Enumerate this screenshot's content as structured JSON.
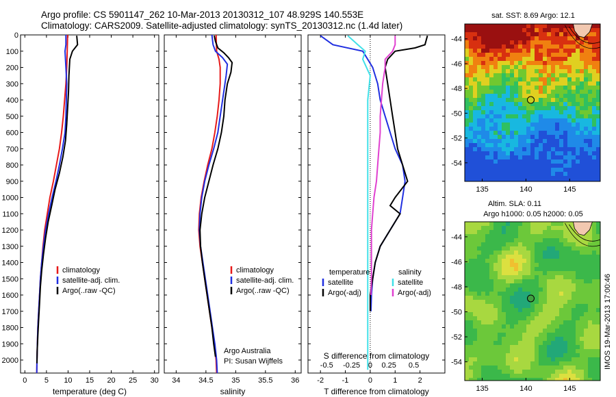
{
  "header": {
    "title_line1": "Argo profile: CS 5901147_262 10-Mar-2013 20130312_107 48.929S 140.553E",
    "title_line2": "Climatology: CARS2009. Satellite-adjusted climatology: synTS_20130312.nc (1.4d later)"
  },
  "colors": {
    "climatology": "#e61919",
    "satellite_adj": "#1f2ee0",
    "argo": "#000000",
    "sal_satellite": "#40e0e8",
    "sal_argo": "#e040d0"
  },
  "chart_data": [
    {
      "type": "line",
      "name": "temperature-profile",
      "xlabel": "temperature (deg C)",
      "ylabel": "",
      "xlim": [
        -1,
        31
      ],
      "ylim": [
        2080,
        0
      ],
      "xticks": [
        0,
        5,
        10,
        15,
        20,
        25,
        30
      ],
      "yticks": [
        0,
        100,
        200,
        300,
        400,
        500,
        600,
        700,
        800,
        900,
        1000,
        1100,
        1200,
        1300,
        1400,
        1500,
        1600,
        1700,
        1800,
        1900,
        2000
      ],
      "legend": [
        "climatology",
        "satellite-adj. clim.",
        "Argo(..raw -QC)"
      ],
      "series": [
        {
          "name": "climatology",
          "color": "#e61919",
          "points": [
            [
              9.9,
              0
            ],
            [
              9.8,
              100
            ],
            [
              9.7,
              200
            ],
            [
              9.5,
              300
            ],
            [
              9.2,
              400
            ],
            [
              8.9,
              500
            ],
            [
              8.5,
              600
            ],
            [
              8.0,
              700
            ],
            [
              7.3,
              800
            ],
            [
              6.6,
              900
            ],
            [
              5.8,
              1000
            ],
            [
              5.2,
              1100
            ],
            [
              4.6,
              1200
            ],
            [
              4.2,
              1300
            ],
            [
              3.9,
              1400
            ],
            [
              3.6,
              1500
            ],
            [
              3.4,
              1600
            ],
            [
              3.2,
              1700
            ],
            [
              3.0,
              1800
            ],
            [
              2.9,
              1900
            ],
            [
              2.8,
              2000
            ],
            [
              2.75,
              2080
            ]
          ]
        },
        {
          "name": "satellite-adj. clim.",
          "color": "#1f2ee0",
          "points": [
            [
              9.5,
              0
            ],
            [
              9.5,
              60
            ],
            [
              9.3,
              100
            ],
            [
              9.5,
              200
            ],
            [
              9.7,
              300
            ],
            [
              9.6,
              400
            ],
            [
              9.5,
              500
            ],
            [
              9.3,
              600
            ],
            [
              8.7,
              700
            ],
            [
              8.0,
              800
            ],
            [
              7.2,
              900
            ],
            [
              6.3,
              1000
            ],
            [
              5.5,
              1100
            ],
            [
              4.8,
              1200
            ],
            [
              4.3,
              1300
            ],
            [
              3.9,
              1400
            ],
            [
              3.6,
              1500
            ],
            [
              3.4,
              1600
            ],
            [
              3.2,
              1700
            ],
            [
              3.0,
              1800
            ],
            [
              2.9,
              1900
            ],
            [
              2.8,
              2000
            ],
            [
              2.75,
              2080
            ]
          ]
        },
        {
          "name": "Argo(..raw -QC)",
          "color": "#000000",
          "points": [
            [
              12.0,
              5
            ],
            [
              12.2,
              60
            ],
            [
              11.0,
              100
            ],
            [
              10.4,
              150
            ],
            [
              10.2,
              250
            ],
            [
              10.1,
              350
            ],
            [
              9.9,
              450
            ],
            [
              9.7,
              550
            ],
            [
              9.4,
              650
            ],
            [
              8.8,
              750
            ],
            [
              8.0,
              850
            ],
            [
              7.0,
              950
            ],
            [
              6.2,
              1050
            ],
            [
              5.4,
              1150
            ],
            [
              4.8,
              1250
            ],
            [
              4.3,
              1350
            ],
            [
              3.9,
              1450
            ],
            [
              3.6,
              1550
            ],
            [
              3.4,
              1650
            ],
            [
              3.2,
              1750
            ],
            [
              3.0,
              1850
            ],
            [
              2.85,
              1950
            ],
            [
              2.8,
              2020
            ]
          ]
        }
      ]
    },
    {
      "type": "line",
      "name": "salinity-profile",
      "xlabel": "salinity",
      "ylabel": "",
      "xlim": [
        33.8,
        36.1
      ],
      "ylim": [
        2080,
        0
      ],
      "xticks": [
        34,
        34.5,
        35,
        35.5,
        36
      ],
      "yticks": [],
      "legend": [
        "climatology",
        "satellite-adj. clim.",
        "Argo(..raw -QC)"
      ],
      "annotation": [
        "Argo Australia",
        "PI: Susan Wijffels"
      ],
      "series": [
        {
          "name": "climatology",
          "color": "#e61919",
          "points": [
            [
              34.67,
              0
            ],
            [
              34.68,
              100
            ],
            [
              34.72,
              150
            ],
            [
              34.74,
              200
            ],
            [
              34.74,
              300
            ],
            [
              34.72,
              400
            ],
            [
              34.69,
              500
            ],
            [
              34.65,
              600
            ],
            [
              34.6,
              700
            ],
            [
              34.53,
              800
            ],
            [
              34.47,
              900
            ],
            [
              34.42,
              1000
            ],
            [
              34.39,
              1100
            ],
            [
              34.38,
              1200
            ],
            [
              34.4,
              1300
            ],
            [
              34.44,
              1400
            ],
            [
              34.48,
              1500
            ],
            [
              34.52,
              1600
            ],
            [
              34.56,
              1700
            ],
            [
              34.6,
              1800
            ],
            [
              34.64,
              1900
            ],
            [
              34.67,
              2000
            ],
            [
              34.68,
              2080
            ]
          ]
        },
        {
          "name": "satellite-adj. clim.",
          "color": "#1f2ee0",
          "points": [
            [
              34.6,
              0
            ],
            [
              34.62,
              60
            ],
            [
              34.66,
              100
            ],
            [
              34.78,
              140
            ],
            [
              34.86,
              180
            ],
            [
              34.84,
              250
            ],
            [
              34.78,
              400
            ],
            [
              34.74,
              500
            ],
            [
              34.7,
              600
            ],
            [
              34.63,
              700
            ],
            [
              34.55,
              800
            ],
            [
              34.48,
              900
            ],
            [
              34.43,
              1000
            ],
            [
              34.4,
              1100
            ],
            [
              34.39,
              1200
            ],
            [
              34.41,
              1300
            ],
            [
              34.45,
              1400
            ],
            [
              34.49,
              1500
            ],
            [
              34.53,
              1600
            ],
            [
              34.57,
              1700
            ],
            [
              34.61,
              1800
            ],
            [
              34.65,
              1900
            ],
            [
              34.68,
              2000
            ],
            [
              34.69,
              2080
            ]
          ]
        },
        {
          "name": "Argo(..raw -QC)",
          "color": "#000000",
          "points": [
            [
              34.64,
              5
            ],
            [
              34.66,
              40
            ],
            [
              34.7,
              80
            ],
            [
              34.8,
              110
            ],
            [
              34.88,
              140
            ],
            [
              34.94,
              170
            ],
            [
              34.92,
              230
            ],
            [
              34.86,
              300
            ],
            [
              34.82,
              400
            ],
            [
              34.8,
              500
            ],
            [
              34.76,
              600
            ],
            [
              34.7,
              700
            ],
            [
              34.62,
              800
            ],
            [
              34.55,
              900
            ],
            [
              34.48,
              1000
            ],
            [
              34.43,
              1100
            ],
            [
              34.4,
              1200
            ],
            [
              34.41,
              1300
            ],
            [
              34.44,
              1400
            ],
            [
              34.48,
              1500
            ],
            [
              34.52,
              1600
            ],
            [
              34.56,
              1700
            ],
            [
              34.6,
              1800
            ],
            [
              34.63,
              1900
            ],
            [
              34.66,
              1980
            ]
          ]
        }
      ]
    },
    {
      "type": "line",
      "name": "difference-profile",
      "xlabel": "T difference from climatology",
      "x2label": "S difference from climatology",
      "xlim": [
        -2.5,
        3.0
      ],
      "ylim": [
        2080,
        0
      ],
      "xticks": [
        -2,
        -1,
        0,
        1,
        2
      ],
      "x2ticks": [
        {
          "label": "-0.5",
          "x": -1.75
        },
        {
          "label": "-0.25",
          "x": -0.75
        },
        {
          "label": "0",
          "x": 0
        },
        {
          "label": "0.25",
          "x": 0.75
        },
        {
          "label": "0.5",
          "x": 1.75
        }
      ],
      "legend_left_title": "temperature",
      "legend_right_title": "salinity",
      "legend": [
        "satellite",
        "Argo(-adj)",
        "satellite",
        "Argo(-adj)"
      ],
      "series": [
        {
          "name": "temperature satellite",
          "color": "#1f2ee0",
          "points": [
            [
              -2.0,
              5
            ],
            [
              -1.5,
              60
            ],
            [
              -0.3,
              100
            ],
            [
              0.1,
              200
            ],
            [
              0.3,
              300
            ],
            [
              0.4,
              400
            ],
            [
              0.6,
              500
            ],
            [
              0.8,
              600
            ],
            [
              1.0,
              700
            ],
            [
              1.3,
              800
            ],
            [
              1.4,
              900
            ],
            [
              1.3,
              1000
            ],
            [
              1.2,
              1100
            ],
            [
              0.8,
              1200
            ],
            [
              0.4,
              1300
            ],
            [
              0.2,
              1400
            ],
            [
              0.1,
              1500
            ],
            [
              0.05,
              1600
            ],
            [
              0.03,
              1700
            ]
          ]
        },
        {
          "name": "temperature Argo(-adj)",
          "color": "#000000",
          "points": [
            [
              2.3,
              5
            ],
            [
              2.2,
              60
            ],
            [
              1.8,
              80
            ],
            [
              1.0,
              100
            ],
            [
              0.7,
              150
            ],
            [
              0.6,
              200
            ],
            [
              0.7,
              300
            ],
            [
              0.8,
              400
            ],
            [
              0.9,
              500
            ],
            [
              1.0,
              600
            ],
            [
              1.1,
              700
            ],
            [
              1.3,
              800
            ],
            [
              1.5,
              900
            ],
            [
              1.0,
              1000
            ],
            [
              0.8,
              1050
            ],
            [
              1.2,
              1100
            ],
            [
              0.8,
              1200
            ],
            [
              0.4,
              1300
            ],
            [
              0.2,
              1400
            ],
            [
              0.1,
              1500
            ],
            [
              0.0,
              1600
            ],
            [
              0.0,
              1700
            ]
          ]
        },
        {
          "name": "salinity satellite",
          "color": "#40e0e8",
          "points": [
            [
              -0.9,
              5
            ],
            [
              -0.5,
              60
            ],
            [
              -0.2,
              100
            ],
            [
              -0.3,
              150
            ],
            [
              0.0,
              250
            ],
            [
              -0.1,
              400
            ],
            [
              -0.1,
              600
            ],
            [
              -0.1,
              800
            ],
            [
              -0.1,
              1000
            ],
            [
              -0.1,
              1200
            ],
            [
              -0.1,
              1400
            ],
            [
              -0.1,
              1600
            ],
            [
              -0.1,
              1800
            ],
            [
              -0.1,
              2000
            ],
            [
              -0.1,
              2060
            ]
          ]
        },
        {
          "name": "salinity Argo(-adj)",
          "color": "#e040d0",
          "points": [
            [
              1.0,
              5
            ],
            [
              1.0,
              60
            ],
            [
              0.9,
              100
            ],
            [
              0.6,
              150
            ],
            [
              0.6,
              200
            ],
            [
              0.5,
              300
            ],
            [
              0.45,
              400
            ],
            [
              0.4,
              500
            ],
            [
              0.4,
              600
            ],
            [
              0.35,
              700
            ],
            [
              0.3,
              800
            ],
            [
              0.25,
              900
            ],
            [
              0.15,
              1000
            ],
            [
              0.1,
              1100
            ],
            [
              0.05,
              1200
            ],
            [
              0.05,
              1300
            ],
            [
              0.05,
              1400
            ],
            [
              0.05,
              1500
            ],
            [
              0.03,
              1600
            ]
          ]
        }
      ]
    },
    {
      "type": "heatmap",
      "name": "sst-map",
      "title": "sat. SST: 8.69 Argo: 12.1",
      "xlim": [
        133,
        148.5
      ],
      "ylim": [
        -55.5,
        -42.8
      ],
      "xticks": [
        135,
        140,
        145
      ],
      "yticks": [
        -44,
        -46,
        -48,
        -50,
        -52,
        -54
      ],
      "marker": {
        "lon": 140.553,
        "lat": -48.929
      }
    },
    {
      "type": "heatmap",
      "name": "sla-map",
      "title": "Altim. SLA: 0.11",
      "subtitle": "Argo h1000: 0.05 h2000: 0.05",
      "xlim": [
        133,
        148.5
      ],
      "ylim": [
        -55.5,
        -42.8
      ],
      "xticks": [
        135,
        140,
        145
      ],
      "yticks": [
        -44,
        -46,
        -48,
        -50,
        -52,
        -54
      ],
      "marker": {
        "lon": 140.553,
        "lat": -48.929
      }
    }
  ],
  "side_label": "IMOS 19-Mar-2013 17:00:46"
}
